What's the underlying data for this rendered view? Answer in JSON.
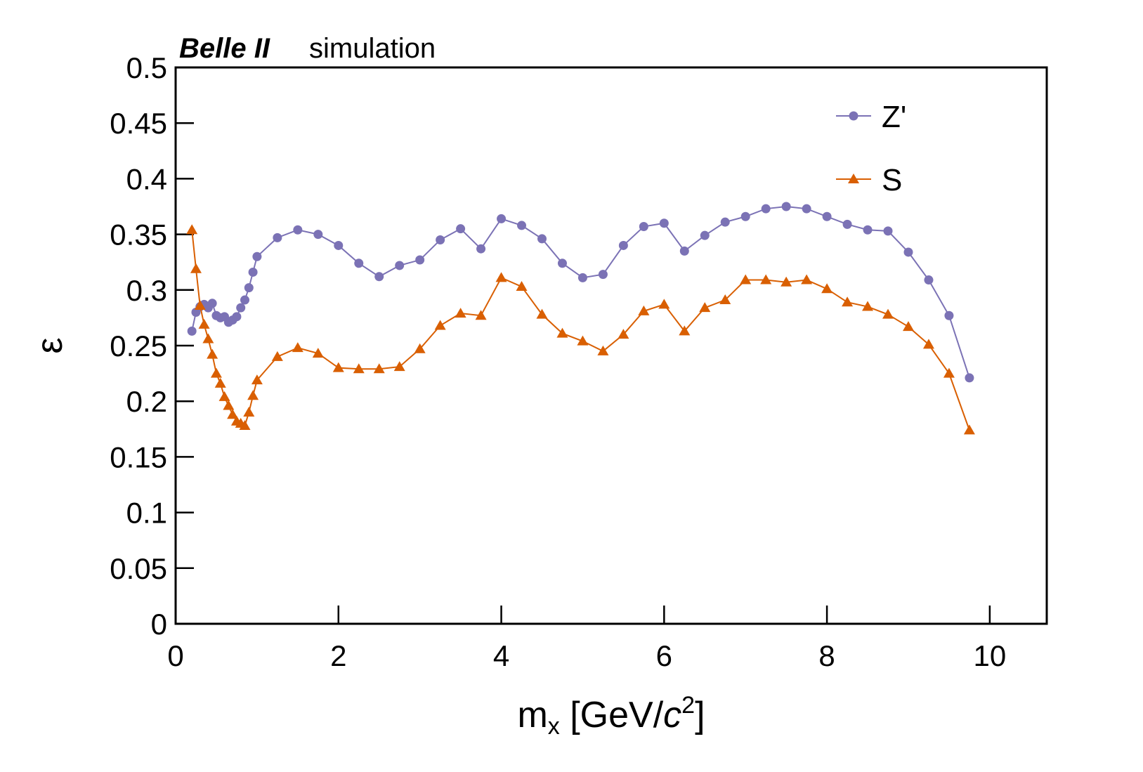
{
  "chart_data": {
    "type": "line",
    "title": "Belle II",
    "subtitle": "simulation",
    "xlabel": {
      "main": "m",
      "sub": "x",
      "open": " [GeV/",
      "italic": "c",
      "sup": "2",
      "close": "]"
    },
    "ylabel": "ε",
    "x": [
      0.2,
      0.25,
      0.3,
      0.35,
      0.4,
      0.45,
      0.5,
      0.55,
      0.6,
      0.65,
      0.7,
      0.75,
      0.8,
      0.85,
      0.9,
      0.95,
      1.0,
      1.25,
      1.5,
      1.75,
      2.0,
      2.25,
      2.5,
      2.75,
      3.0,
      3.25,
      3.5,
      3.75,
      4.0,
      4.25,
      4.5,
      4.75,
      5.0,
      5.25,
      5.5,
      5.75,
      6.0,
      6.25,
      6.5,
      6.75,
      7.0,
      7.25,
      7.5,
      7.75,
      8.0,
      8.25,
      8.5,
      8.75,
      9.0,
      9.25,
      9.5,
      9.75
    ],
    "series": [
      {
        "name": "Z'",
        "color": "#7b72b5",
        "marker": "circle",
        "values": [
          0.263,
          0.28,
          0.285,
          0.287,
          0.284,
          0.288,
          0.277,
          0.275,
          0.276,
          0.271,
          0.273,
          0.276,
          0.284,
          0.291,
          0.302,
          0.316,
          0.33,
          0.347,
          0.354,
          0.35,
          0.34,
          0.324,
          0.312,
          0.322,
          0.327,
          0.345,
          0.355,
          0.337,
          0.364,
          0.358,
          0.346,
          0.324,
          0.311,
          0.314,
          0.34,
          0.357,
          0.36,
          0.335,
          0.349,
          0.361,
          0.366,
          0.373,
          0.375,
          0.373,
          0.366,
          0.359,
          0.354,
          0.353,
          0.334,
          0.309,
          0.277,
          0.221
        ]
      },
      {
        "name": "S",
        "color": "#d95f02",
        "marker": "triangle",
        "values": [
          0.354,
          0.319,
          0.286,
          0.269,
          0.256,
          0.242,
          0.225,
          0.216,
          0.204,
          0.196,
          0.188,
          0.182,
          0.18,
          0.178,
          0.19,
          0.205,
          0.219,
          0.24,
          0.248,
          0.243,
          0.23,
          0.229,
          0.229,
          0.231,
          0.247,
          0.268,
          0.279,
          0.277,
          0.311,
          0.303,
          0.278,
          0.261,
          0.254,
          0.245,
          0.26,
          0.281,
          0.287,
          0.263,
          0.284,
          0.291,
          0.309,
          0.309,
          0.307,
          0.309,
          0.301,
          0.289,
          0.285,
          0.278,
          0.267,
          0.251,
          0.225,
          0.174
        ]
      }
    ],
    "xlim": [
      0,
      10.7
    ],
    "xticks": [
      0,
      2,
      4,
      6,
      8,
      10
    ],
    "ylim": [
      0,
      0.5
    ],
    "yticks": [
      0,
      0.05,
      0.1,
      0.15,
      0.2,
      0.25,
      0.3,
      0.35,
      0.4,
      0.45,
      0.5
    ],
    "legend": "upper right",
    "grid": false
  }
}
